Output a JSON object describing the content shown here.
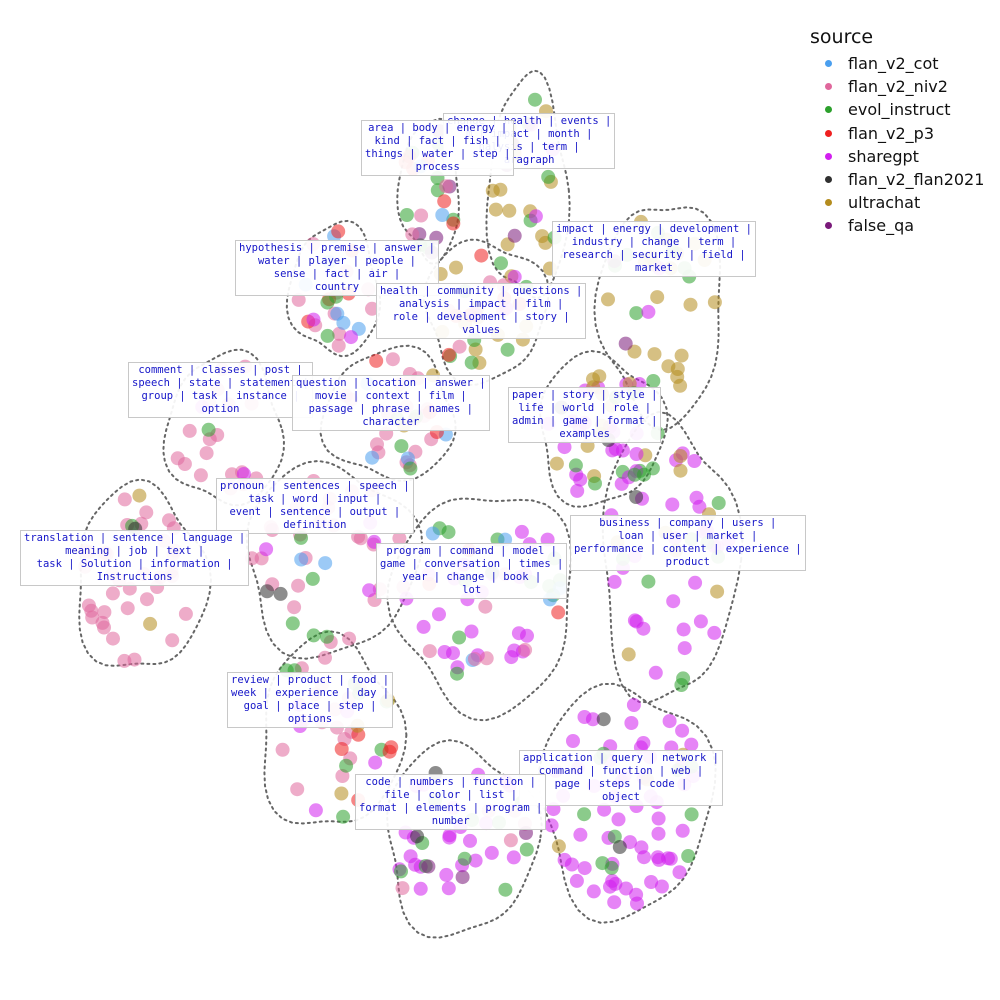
{
  "chart_data": {
    "type": "scatter",
    "title": "",
    "xlabel": "",
    "ylabel": "",
    "grid": false,
    "legend": {
      "title": "source",
      "placement": "top-right",
      "entries": [
        {
          "name": "flan_v2_cot",
          "color": "#4a9fef"
        },
        {
          "name": "flan_v2_niv2",
          "color": "#e0679c"
        },
        {
          "name": "evol_instruct",
          "color": "#2ca02c"
        },
        {
          "name": "flan_v2_p3",
          "color": "#ef2020"
        },
        {
          "name": "sharegpt",
          "color": "#d21fef"
        },
        {
          "name": "flan_v2_flan2021",
          "color": "#303030"
        },
        {
          "name": "ultrachat",
          "color": "#b48c1e"
        },
        {
          "name": "false_qa",
          "color": "#7a1a7a"
        }
      ]
    },
    "clusters": [
      {
        "id": "c1",
        "topic": "change | health | events |\nm | impact | month |\nnalysis | term |\naragraph",
        "counts": {
          "ultrachat": 14,
          "evol_instruct": 6,
          "false_qa": 3,
          "sharegpt": 3
        }
      },
      {
        "id": "c2",
        "topic": "area | body | energy |\nkind | fact | fish |\nthings | water | step |\nprocess",
        "counts": {
          "evol_instruct": 8,
          "flan_v2_p3": 6,
          "false_qa": 5,
          "flan_v2_niv2": 4,
          "flan_v2_cot": 2
        }
      },
      {
        "id": "c3",
        "topic": "impact | energy | development |\nindustry | change | term |\nresearch | security | field |\nmarket",
        "counts": {
          "ultrachat": 20,
          "evol_instruct": 8,
          "sharegpt": 3,
          "false_qa": 2
        }
      },
      {
        "id": "c4",
        "topic": "hypothesis | premise | answer |\nwater | player | people |\nsense | fact | air |\ncountry",
        "counts": {
          "flan_v2_niv2": 10,
          "flan_v2_cot": 6,
          "flan_v2_p3": 5,
          "evol_instruct": 3,
          "sharegpt": 2
        }
      },
      {
        "id": "c5",
        "topic": "health | community | questions |\nanalysis | impact | film |\nrole | development | story |\nvalues",
        "counts": {
          "ultrachat": 12,
          "evol_instruct": 6,
          "flan_v2_p3": 6,
          "flan_v2_niv2": 5,
          "sharegpt": 3
        }
      },
      {
        "id": "c6",
        "topic": "comment | classes | post |\nspeech | state | statement |\ngroup | task | instance |\noption",
        "counts": {
          "flan_v2_niv2": 18,
          "sharegpt": 2,
          "evol_instruct": 1
        }
      },
      {
        "id": "c7",
        "topic": "question | location | answer |\nmovie | context | film |\npassage | phrase | names |\ncharacter",
        "counts": {
          "flan_v2_niv2": 18,
          "flan_v2_cot": 4,
          "evol_instruct": 4,
          "flan_v2_p3": 3,
          "ultrachat": 2
        }
      },
      {
        "id": "c8",
        "topic": "paper | story | style |\nlife | world | role |\nadmin | game | format |\nexamples",
        "counts": {
          "sharegpt": 18,
          "ultrachat": 12,
          "evol_instruct": 6,
          "flan_v2_flan2021": 2
        }
      },
      {
        "id": "c9",
        "topic": "pronoun | sentences | speech |\ntask | word | input |\nevent | sentence | output |\ndefinition",
        "counts": {
          "flan_v2_niv2": 26,
          "evol_instruct": 5,
          "sharegpt": 4,
          "flan_v2_flan2021": 2,
          "flan_v2_cot": 2
        }
      },
      {
        "id": "c10",
        "topic": "business | company | users |\nloan | user | market |\nperformance | content | experience |\nproduct",
        "counts": {
          "sharegpt": 30,
          "evol_instruct": 12,
          "ultrachat": 8,
          "flan_v2_flan2021": 1
        }
      },
      {
        "id": "c11",
        "topic": "translation | sentence | language |\nmeaning | job | text |\ntask | Solution | information |\nInstructions",
        "counts": {
          "flan_v2_niv2": 38,
          "ultrachat": 2,
          "evol_instruct": 1,
          "flan_v2_flan2021": 1
        }
      },
      {
        "id": "c12",
        "topic": "program | command | model |\ngame | conversation | times |\nyear | change | book |\nlot",
        "counts": {
          "sharegpt": 24,
          "evol_instruct": 12,
          "flan_v2_cot": 5,
          "flan_v2_niv2": 6,
          "flan_v2_p3": 3
        }
      },
      {
        "id": "c13",
        "topic": "review | product | food |\nweek | experience | day |\ngoal | place | step |\noptions",
        "counts": {
          "flan_v2_niv2": 16,
          "evol_instruct": 8,
          "flan_v2_p3": 5,
          "sharegpt": 5,
          "ultrachat": 3
        }
      },
      {
        "id": "c14",
        "topic": "application | query | network |\ncommand | function | web |\npage | steps | code |\nobject",
        "counts": {
          "sharegpt": 60,
          "evol_instruct": 10,
          "ultrachat": 3,
          "flan_v2_flan2021": 2
        }
      },
      {
        "id": "c15",
        "topic": "code | numbers | function |\nfile | color | list |\nformat | elements | program |\nnumber",
        "counts": {
          "sharegpt": 24,
          "evol_instruct": 10,
          "flan_v2_niv2": 5,
          "false_qa": 3,
          "flan_v2_flan2021": 2
        }
      }
    ]
  }
}
